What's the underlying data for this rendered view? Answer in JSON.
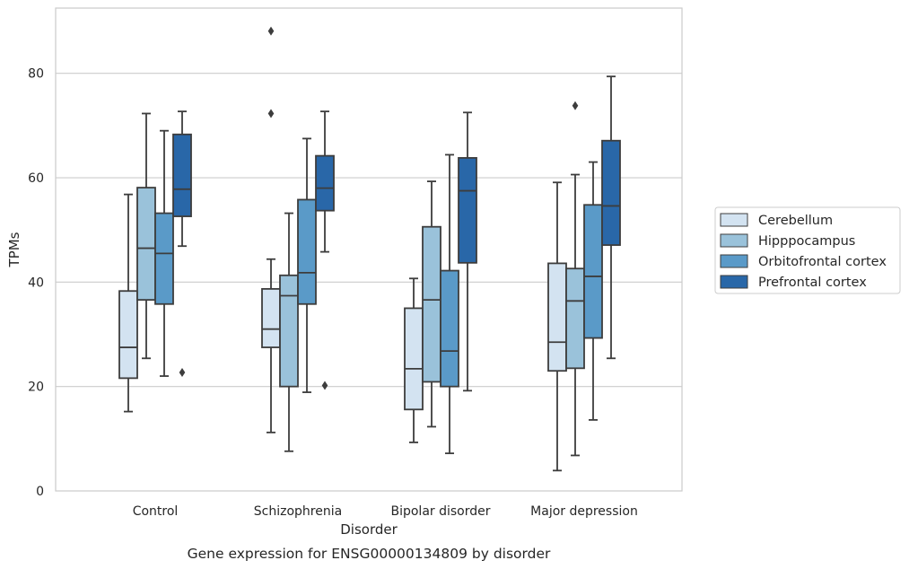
{
  "chart_data": {
    "type": "box",
    "title": "",
    "caption": "Gene expression for ENSG00000134809 by disorder",
    "xlabel": "Disorder",
    "ylabel": "TPMs",
    "ylim": [
      0,
      92.5
    ],
    "yticks": [
      0,
      20,
      40,
      60,
      80
    ],
    "grid": "horizontal",
    "legend_position": "right",
    "categories": [
      "Control",
      "Schizophrenia",
      "Bipolar disorder",
      "Major depression"
    ],
    "series": [
      {
        "name": "Cerebellum",
        "color": "#d3e3f1",
        "boxes": [
          {
            "whisker_low": 15.2,
            "q1": 21.6,
            "median": 27.5,
            "q3": 38.3,
            "whisker_high": 56.8,
            "outliers": []
          },
          {
            "whisker_low": 11.2,
            "q1": 27.5,
            "median": 31.0,
            "q3": 38.7,
            "whisker_high": 44.4,
            "outliers": [
              88.1,
              72.3
            ]
          },
          {
            "whisker_low": 9.3,
            "q1": 15.6,
            "median": 23.4,
            "q3": 35.0,
            "whisker_high": 40.7,
            "outliers": []
          },
          {
            "whisker_low": 3.9,
            "q1": 23.0,
            "median": 28.5,
            "q3": 43.6,
            "whisker_high": 59.1,
            "outliers": []
          }
        ]
      },
      {
        "name": "Hipppocampus",
        "color": "#9ac2da",
        "boxes": [
          {
            "whisker_low": 25.4,
            "q1": 36.6,
            "median": 46.5,
            "q3": 58.1,
            "whisker_high": 72.3,
            "outliers": []
          },
          {
            "whisker_low": 7.6,
            "q1": 20.0,
            "median": 37.4,
            "q3": 41.3,
            "whisker_high": 53.2,
            "outliers": []
          },
          {
            "whisker_low": 12.3,
            "q1": 20.9,
            "median": 36.6,
            "q3": 50.6,
            "whisker_high": 59.3,
            "outliers": []
          },
          {
            "whisker_low": 6.8,
            "q1": 23.5,
            "median": 36.4,
            "q3": 42.6,
            "whisker_high": 60.6,
            "outliers": [
              73.8
            ]
          }
        ]
      },
      {
        "name": "Orbitofrontal cortex",
        "color": "#5a9ac8",
        "boxes": [
          {
            "whisker_low": 22.0,
            "q1": 35.8,
            "median": 45.5,
            "q3": 53.2,
            "whisker_high": 69.0,
            "outliers": []
          },
          {
            "whisker_low": 18.9,
            "q1": 35.8,
            "median": 41.8,
            "q3": 55.8,
            "whisker_high": 67.5,
            "outliers": []
          },
          {
            "whisker_low": 7.2,
            "q1": 20.0,
            "median": 26.8,
            "q3": 42.2,
            "whisker_high": 64.4,
            "outliers": []
          },
          {
            "whisker_low": 13.6,
            "q1": 29.3,
            "median": 41.1,
            "q3": 54.8,
            "whisker_high": 63.0,
            "outliers": []
          }
        ]
      },
      {
        "name": "Prefrontal cortex",
        "color": "#2967a8",
        "boxes": [
          {
            "whisker_low": 46.9,
            "q1": 52.6,
            "median": 57.8,
            "q3": 68.3,
            "whisker_high": 72.7,
            "outliers": [
              22.7
            ]
          },
          {
            "whisker_low": 45.8,
            "q1": 53.7,
            "median": 58.0,
            "q3": 64.2,
            "whisker_high": 72.7,
            "outliers": [
              20.2
            ]
          },
          {
            "whisker_low": 19.2,
            "q1": 43.7,
            "median": 57.5,
            "q3": 63.8,
            "whisker_high": 72.5,
            "outliers": []
          },
          {
            "whisker_low": 25.4,
            "q1": 47.1,
            "median": 54.6,
            "q3": 67.1,
            "whisker_high": 79.4,
            "outliers": []
          }
        ]
      }
    ]
  }
}
